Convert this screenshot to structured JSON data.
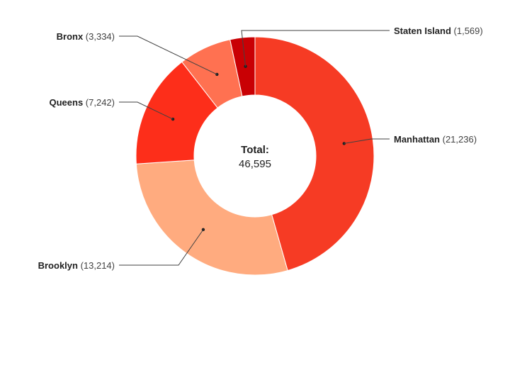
{
  "chart_data": {
    "type": "pie",
    "variant": "donut",
    "center": {
      "label": "Total:",
      "value": "46,595"
    },
    "slices": [
      {
        "name": "Manhattan",
        "value": 21236,
        "value_label": "(21,236)",
        "color": "#f63b24"
      },
      {
        "name": "Brooklyn",
        "value": 13214,
        "value_label": "(13,214)",
        "color": "#ffab7f"
      },
      {
        "name": "Queens",
        "value": 7242,
        "value_label": "(7,242)",
        "color": "#fd2e1a"
      },
      {
        "name": "Bronx",
        "value": 3334,
        "value_label": "(3,334)",
        "color": "#ff7151"
      },
      {
        "name": "Staten Island",
        "value": 1569,
        "value_label": "(1,569)",
        "color": "#c90004"
      }
    ]
  }
}
